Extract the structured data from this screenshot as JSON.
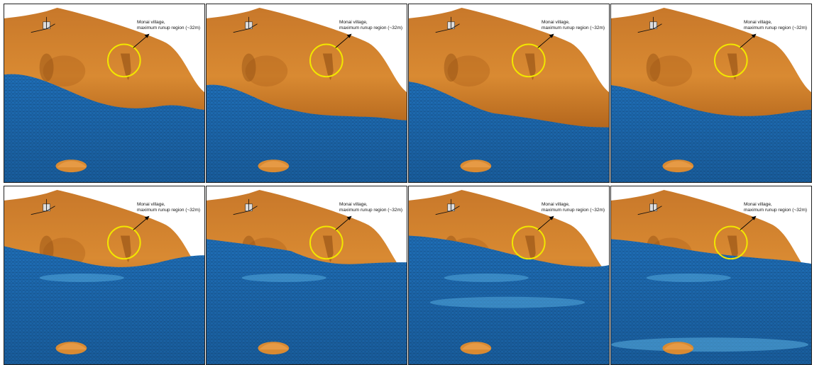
{
  "annotation": {
    "line1": "Monai village,",
    "line2": "maximum runup region (~32m)"
  },
  "colors": {
    "terrain": "#d98a32",
    "terrain_dark": "#a85b16",
    "water": "#1f6fb8",
    "water_light": "#5fb8e8",
    "mesh": "#0a2a4a",
    "highlight_circle": "#f2e600"
  },
  "panels": [
    {
      "row": 1,
      "col": 1,
      "stage": "initial"
    },
    {
      "row": 1,
      "col": 2,
      "stage": "drawdown"
    },
    {
      "row": 1,
      "col": 3,
      "stage": "drawdown-deep"
    },
    {
      "row": 1,
      "col": 4,
      "stage": "wave-arrival"
    },
    {
      "row": 2,
      "col": 1,
      "stage": "wave-front"
    },
    {
      "row": 2,
      "col": 2,
      "stage": "runup"
    },
    {
      "row": 2,
      "col": 3,
      "stage": "runup-max"
    },
    {
      "row": 2,
      "col": 4,
      "stage": "recession"
    }
  ]
}
